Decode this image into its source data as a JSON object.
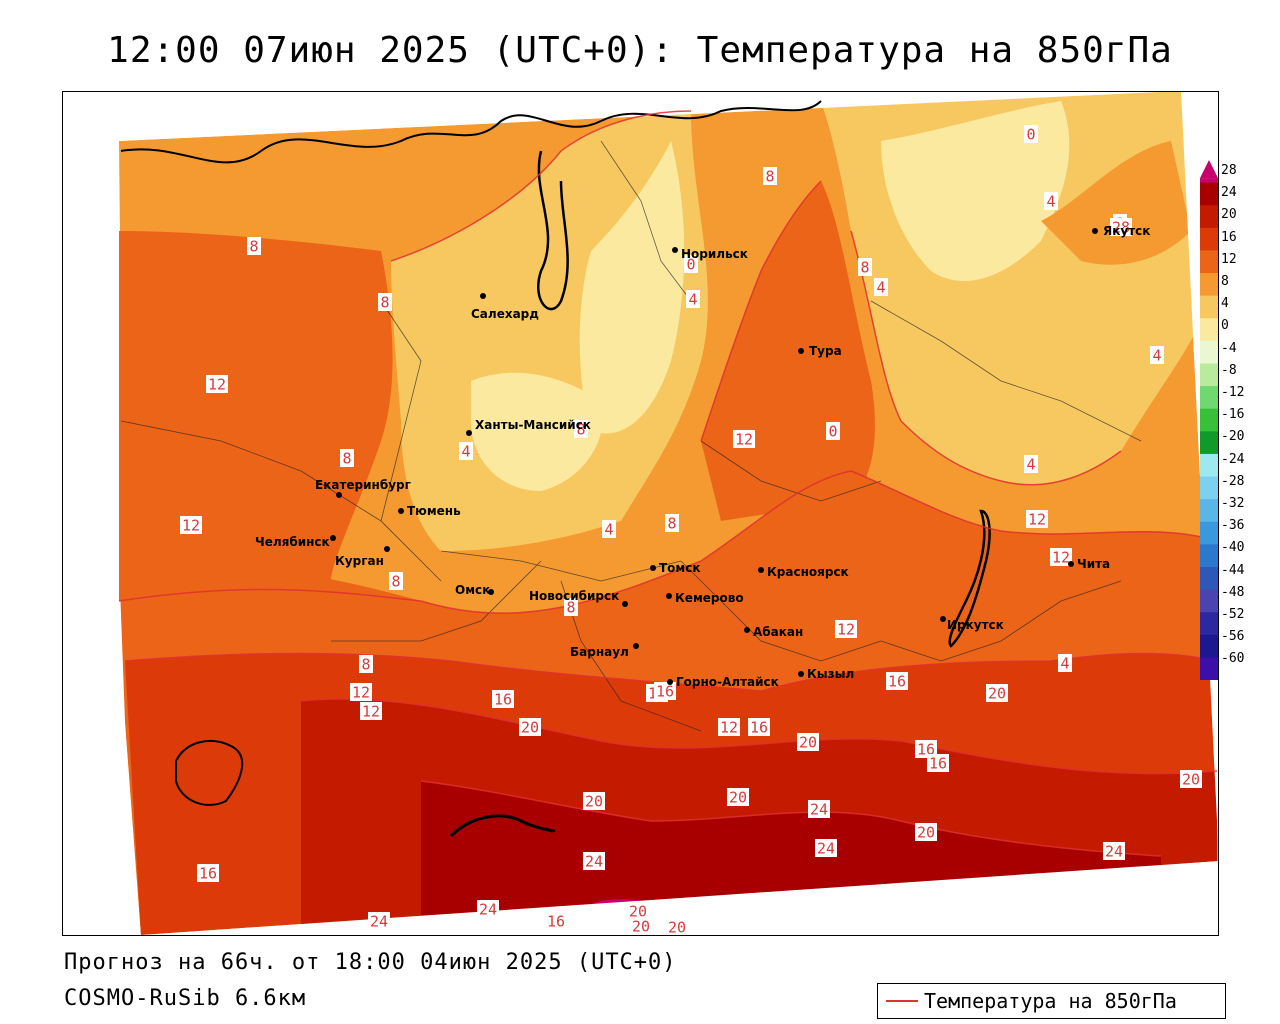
{
  "title": "12:00 07июн 2025 (UTC+0): Температура на 850гПа",
  "forecast_line": "Прогноз на 66ч. от 18:00 04июн 2025 (UTC+0)",
  "model_line": "COSMO-RuSib 6.6км",
  "legend_label": "Температура на 850гПа",
  "legend_line_color": "#e03030",
  "colorbar": {
    "labels": [
      "28",
      "24",
      "20",
      "16",
      "12",
      "8",
      "4",
      "0",
      "-4",
      "-8",
      "-12",
      "-16",
      "-20",
      "-24",
      "-28",
      "-32",
      "-36",
      "-40",
      "-44",
      "-48",
      "-52",
      "-56",
      "-60"
    ],
    "colors": [
      "#c8006e",
      "#a80000",
      "#c41a00",
      "#dd3a0a",
      "#ec6418",
      "#f49a30",
      "#f8c860",
      "#fbe9a0",
      "#eaf7d0",
      "#b8ec9c",
      "#70d870",
      "#38c038",
      "#0f9a2a",
      "#9ee8f0",
      "#7cd2ee",
      "#5ab6e6",
      "#3c98dc",
      "#2c78cc",
      "#2e58b8",
      "#4a44b0",
      "#2c28a0",
      "#1c1890",
      "#3a10a8"
    ]
  },
  "cities": [
    {
      "name": "Норильск"
    },
    {
      "name": "Якутск"
    },
    {
      "name": "Салехард"
    },
    {
      "name": "Тура"
    },
    {
      "name": "Ханты-Мансийск"
    },
    {
      "name": "Екатеринбург"
    },
    {
      "name": "Тюмень"
    },
    {
      "name": "Челябинск"
    },
    {
      "name": "Курган"
    },
    {
      "name": "Омск"
    },
    {
      "name": "Новосибирск"
    },
    {
      "name": "Томск"
    },
    {
      "name": "Кемерово"
    },
    {
      "name": "Красноярск"
    },
    {
      "name": "Чита"
    },
    {
      "name": "Иркутск"
    },
    {
      "name": "Абакан"
    },
    {
      "name": "Барнаул"
    },
    {
      "name": "Горно-Алтайск"
    },
    {
      "name": "Кызыл"
    }
  ],
  "isotherm_labels": [
    "0",
    "8",
    "4",
    "8",
    "0",
    "4",
    "8",
    "4",
    "8",
    "8",
    "8",
    "4",
    "12",
    "12",
    "0",
    "4",
    "4",
    "8",
    "4",
    "8",
    "12",
    "12",
    "12",
    "8",
    "8",
    "12",
    "4",
    "8",
    "12",
    "12",
    "16",
    "16",
    "12",
    "20",
    "16",
    "16",
    "20",
    "20",
    "16",
    "16",
    "20",
    "20",
    "16",
    "20",
    "24",
    "20",
    "24",
    "24",
    "24",
    "24",
    "16",
    "24",
    "20",
    "24",
    "16",
    "20",
    "28",
    "20",
    "20"
  ]
}
